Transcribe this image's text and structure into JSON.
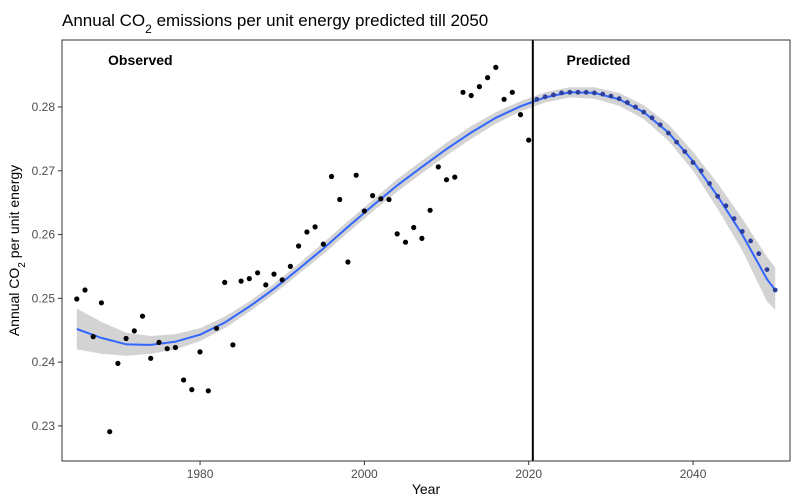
{
  "chart_data": {
    "type": "scatter",
    "title_prefix": "Annual CO",
    "title_sub": "2",
    "title_suffix": " emissions per unit energy predicted till 2050",
    "xlabel": "Year",
    "ylabel_prefix": "Annual CO",
    "ylabel_sub": "2",
    "ylabel_suffix": " per unit energy",
    "xlim": [
      1963.2,
      2051.8
    ],
    "ylim": [
      0.2245,
      0.2905
    ],
    "x_ticks": [
      1980,
      2000,
      2020,
      2040
    ],
    "y_ticks": [
      0.23,
      0.24,
      0.25,
      0.26,
      0.27,
      0.28
    ],
    "y_tick_labels": [
      "0.23",
      "0.24",
      "0.25",
      "0.26",
      "0.27",
      "0.28"
    ],
    "grid": false,
    "divider_x": 2020.5,
    "annotations": [
      {
        "label": "Observed",
        "x": 1968.8,
        "y": 0.2866
      },
      {
        "label": "Predicted",
        "x": 2024.6,
        "y": 0.2866
      }
    ],
    "observed": {
      "x": [
        1965,
        1966,
        1967,
        1968,
        1969,
        1970,
        1971,
        1972,
        1973,
        1974,
        1975,
        1976,
        1977,
        1978,
        1979,
        1980,
        1981,
        1982,
        1983,
        1984,
        1985,
        1986,
        1987,
        1988,
        1989,
        1990,
        1991,
        1992,
        1993,
        1994,
        1995,
        1996,
        1997,
        1998,
        1999,
        2000,
        2001,
        2002,
        2003,
        2004,
        2005,
        2006,
        2007,
        2008,
        2009,
        2010,
        2011,
        2012,
        2013,
        2014,
        2015,
        2016,
        2017,
        2018,
        2019,
        2020
      ],
      "y": [
        0.2499,
        0.2513,
        0.244,
        0.2493,
        0.2291,
        0.2398,
        0.2437,
        0.2449,
        0.2472,
        0.2406,
        0.2431,
        0.2421,
        0.2423,
        0.2372,
        0.2357,
        0.2416,
        0.2355,
        0.2453,
        0.2525,
        0.2427,
        0.2527,
        0.2531,
        0.254,
        0.2521,
        0.2538,
        0.2529,
        0.255,
        0.2582,
        0.2604,
        0.2612,
        0.2585,
        0.2691,
        0.2655,
        0.2557,
        0.2693,
        0.2637,
        0.2661,
        0.2656,
        0.2655,
        0.2601,
        0.2588,
        0.2611,
        0.2594,
        0.2638,
        0.2706,
        0.2686,
        0.269,
        0.2823,
        0.2818,
        0.2832,
        0.2846,
        0.2862,
        0.2812,
        0.2823,
        0.2788,
        0.2748
      ]
    },
    "predicted": {
      "x": [
        2021,
        2022,
        2023,
        2024,
        2025,
        2026,
        2027,
        2028,
        2029,
        2030,
        2031,
        2032,
        2033,
        2034,
        2035,
        2036,
        2037,
        2038,
        2039,
        2040,
        2041,
        2042,
        2043,
        2044,
        2045,
        2046,
        2047,
        2048,
        2049,
        2050
      ],
      "y": [
        0.2812,
        0.2816,
        0.2819,
        0.2822,
        0.2823,
        0.2823,
        0.2823,
        0.2822,
        0.282,
        0.2817,
        0.2813,
        0.2807,
        0.28,
        0.2792,
        0.2783,
        0.2772,
        0.2759,
        0.2745,
        0.273,
        0.2713,
        0.27,
        0.268,
        0.266,
        0.2645,
        0.2625,
        0.2605,
        0.259,
        0.257,
        0.2545,
        0.2513
      ]
    },
    "fit": {
      "x": [
        1965,
        1968,
        1971,
        1974,
        1977,
        1980,
        1983,
        1986,
        1989,
        1992,
        1995,
        1998,
        2001,
        2004,
        2007,
        2010,
        2013,
        2016,
        2019,
        2022,
        2025,
        2028,
        2031,
        2034,
        2037,
        2040,
        2043,
        2046,
        2049,
        2050
      ],
      "y": [
        0.2452,
        0.2438,
        0.2428,
        0.2427,
        0.2432,
        0.2443,
        0.2462,
        0.2487,
        0.2515,
        0.2546,
        0.2578,
        0.2612,
        0.2645,
        0.2677,
        0.2706,
        0.2734,
        0.276,
        0.2783,
        0.2801,
        0.2815,
        0.2823,
        0.2822,
        0.2812,
        0.2792,
        0.276,
        0.2715,
        0.266,
        0.26,
        0.253,
        0.2513
      ],
      "lower": [
        0.242,
        0.2413,
        0.241,
        0.2413,
        0.242,
        0.2433,
        0.2453,
        0.2479,
        0.2507,
        0.2538,
        0.2569,
        0.2603,
        0.2636,
        0.2667,
        0.2696,
        0.2724,
        0.275,
        0.2774,
        0.2793,
        0.2807,
        0.2815,
        0.2813,
        0.2802,
        0.2781,
        0.2747,
        0.27,
        0.264,
        0.2575,
        0.2495,
        0.2482
      ],
      "upper": [
        0.2484,
        0.2463,
        0.2446,
        0.2441,
        0.2444,
        0.2453,
        0.2471,
        0.2495,
        0.2523,
        0.2554,
        0.2587,
        0.2621,
        0.2654,
        0.2687,
        0.2716,
        0.2744,
        0.277,
        0.2792,
        0.2809,
        0.2823,
        0.2831,
        0.2831,
        0.2822,
        0.2803,
        0.2773,
        0.273,
        0.268,
        0.2625,
        0.2565,
        0.2548
      ]
    },
    "colors": {
      "points": "#000000",
      "predicted_points": "#2c3e9e",
      "fit_line": "#3366ff",
      "ribbon": "#d3d3d3",
      "divider": "#000000",
      "frame": "#333333"
    }
  }
}
